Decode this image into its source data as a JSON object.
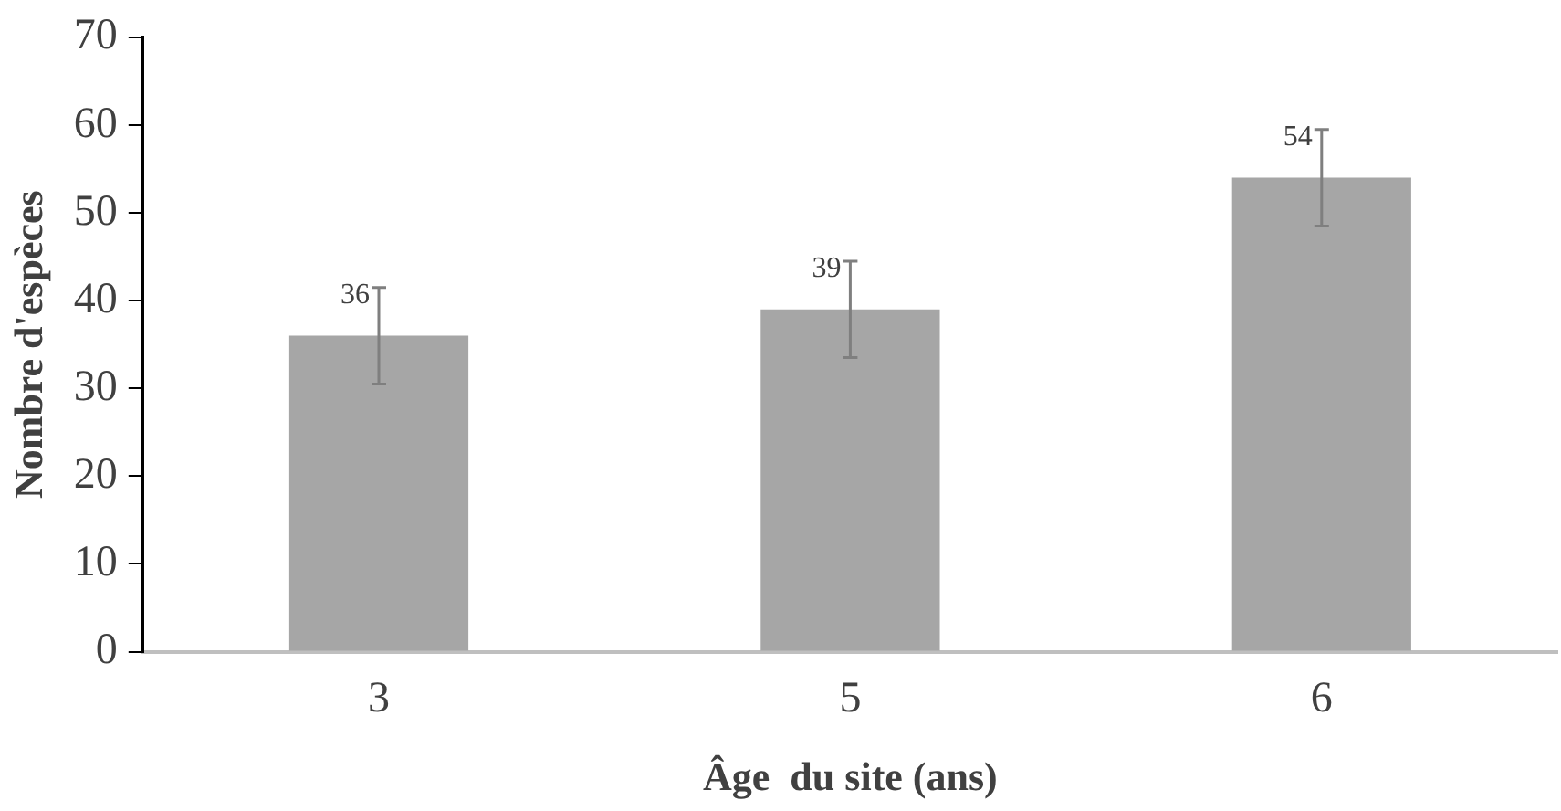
{
  "chart_data": {
    "type": "bar",
    "xlabel": "Âge  du site (ans)",
    "ylabel": "Nombre d'espèces",
    "categories": [
      "3",
      "5",
      "6"
    ],
    "values": [
      36,
      39,
      54
    ],
    "errors": [
      5.5,
      5.5,
      5.5
    ],
    "color": "#a6a6a6",
    "ylim": [
      0,
      70
    ],
    "yticks": [
      0,
      10,
      20,
      30,
      40,
      50,
      60,
      70
    ],
    "data_labels": true,
    "grid": false,
    "legend": false
  }
}
